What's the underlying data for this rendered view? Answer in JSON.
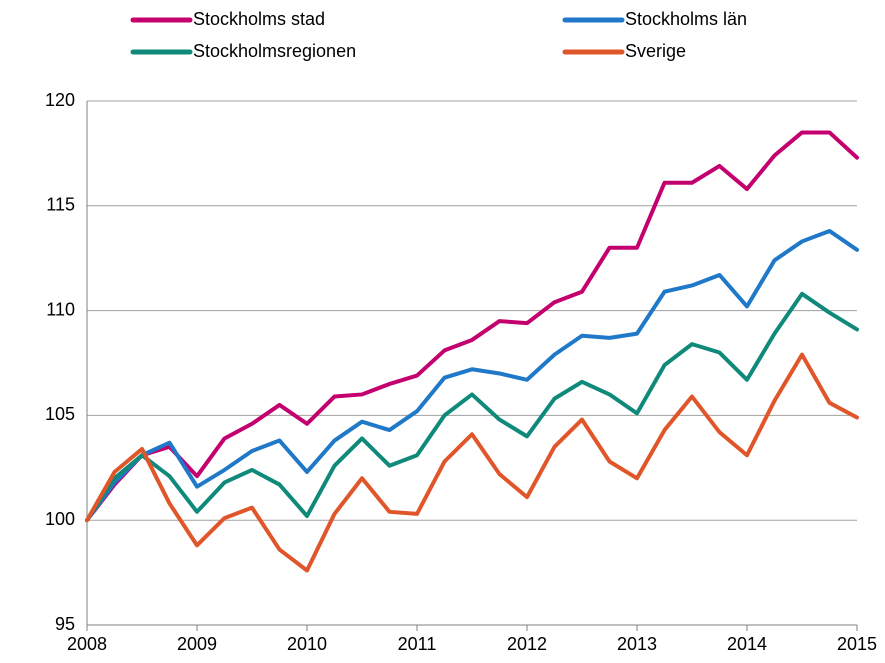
{
  "chart_data": {
    "type": "line",
    "x": [
      2008,
      2008.25,
      2008.5,
      2008.75,
      2009,
      2009.25,
      2009.5,
      2009.75,
      2010,
      2010.25,
      2010.5,
      2010.75,
      2011,
      2011.25,
      2011.5,
      2011.75,
      2012,
      2012.25,
      2012.5,
      2012.75,
      2013,
      2013.25,
      2013.5,
      2013.75,
      2014,
      2014.25,
      2014.5,
      2014.75,
      2015
    ],
    "series": [
      {
        "name": "Stockholms stad",
        "color": "#c4006f",
        "values": [
          100,
          101.7,
          103.1,
          103.5,
          102.1,
          103.9,
          104.6,
          105.5,
          104.6,
          105.9,
          106.0,
          106.5,
          106.9,
          108.1,
          108.6,
          109.5,
          109.4,
          110.4,
          110.9,
          113.0,
          113.0,
          116.1,
          116.1,
          116.9,
          115.8,
          117.4,
          118.5,
          118.5,
          117.3
        ]
      },
      {
        "name": "Stockholms län",
        "color": "#1f78c8",
        "values": [
          100,
          101.8,
          103.1,
          103.7,
          101.6,
          102.4,
          103.3,
          103.8,
          102.3,
          103.8,
          104.7,
          104.3,
          105.2,
          106.8,
          107.2,
          107.0,
          106.7,
          107.9,
          108.8,
          108.7,
          108.9,
          110.9,
          111.2,
          111.7,
          110.2,
          112.4,
          113.3,
          113.8,
          112.9
        ]
      },
      {
        "name": "Stockholmsregionen",
        "color": "#0f8a7a",
        "values": [
          100,
          102.0,
          103.1,
          102.1,
          100.4,
          101.8,
          102.4,
          101.7,
          100.2,
          102.6,
          103.9,
          102.6,
          103.1,
          105.0,
          106.0,
          104.8,
          104.0,
          105.8,
          106.6,
          106.0,
          105.1,
          107.4,
          108.4,
          108.0,
          106.7,
          108.9,
          110.8,
          109.9,
          109.1
        ]
      },
      {
        "name": "Sverige",
        "color": "#e0562a",
        "values": [
          100,
          102.3,
          103.4,
          100.8,
          98.8,
          100.1,
          100.6,
          98.6,
          97.6,
          100.3,
          102.0,
          100.4,
          100.3,
          102.8,
          104.1,
          102.2,
          101.1,
          103.5,
          104.8,
          102.8,
          102.0,
          104.3,
          105.9,
          104.2,
          103.1,
          105.7,
          107.9,
          105.6,
          104.9
        ]
      }
    ],
    "xlim": [
      2008,
      2015
    ],
    "xticks": [
      2008,
      2009,
      2010,
      2011,
      2012,
      2013,
      2014,
      2015
    ],
    "ylim": [
      95,
      120
    ],
    "yticks": [
      95,
      100,
      105,
      110,
      115,
      120
    ],
    "grid": true,
    "legend": "top"
  }
}
